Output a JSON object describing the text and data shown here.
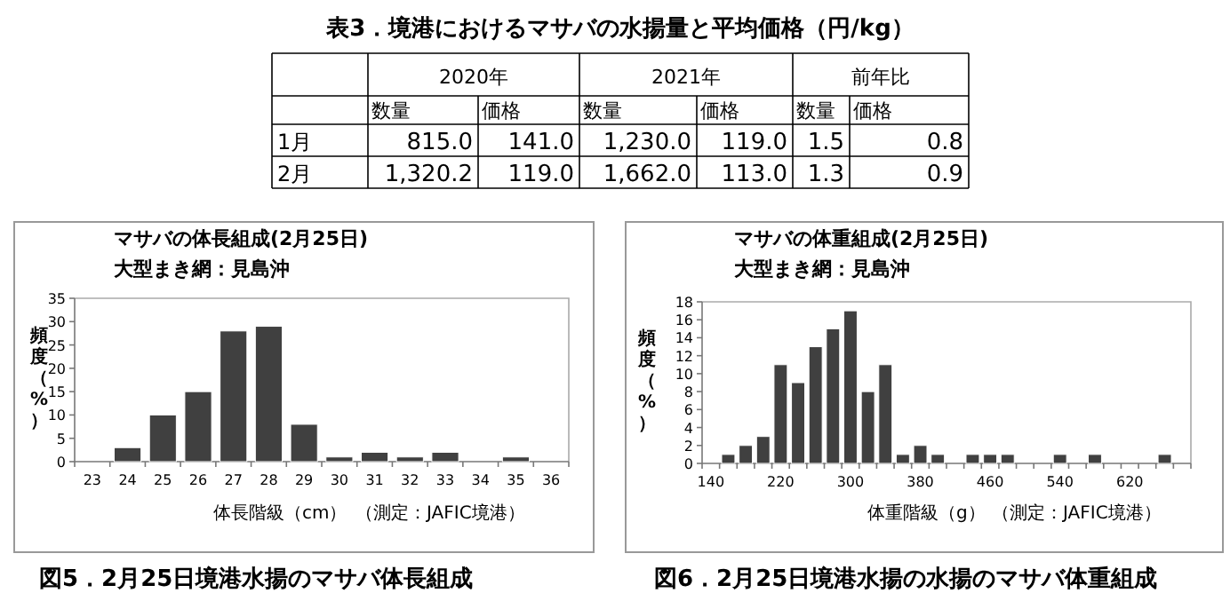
{
  "chart_data": [
    {
      "type": "other",
      "title": "表3．境港におけるマサバの水揚量と平均価格（円/kg）",
      "categories": [
        "2020年",
        "2021年",
        "前年比"
      ],
      "annotations": [
        "数量",
        "価格",
        "数量",
        "価格",
        "数量",
        "価格"
      ],
      "y_categories": [
        "1月",
        "2月"
      ],
      "cell_labels": [
        [
          "815.0",
          "141.0",
          "1,230.0",
          "119.0",
          "1.5",
          "0.8"
        ],
        [
          "1,320.2",
          "119.0",
          "1,662.0",
          "113.0",
          "1.3",
          "0.9"
        ]
      ]
    },
    {
      "type": "bar",
      "title": "マサバの体長組成(2月25日)",
      "subtitle": "大型まき網：見島沖",
      "xlabel": "体長階級（cm）",
      "ylabel": "頻度（%）",
      "annotations": [
        "（測定：JAFIC境港）",
        "図5．2月25日境港水揚のマサバ体長組成"
      ],
      "color": "#404040",
      "ylim": [
        0,
        35
      ],
      "yticks": [
        0,
        5,
        10,
        15,
        20,
        25,
        30,
        35
      ],
      "categories": [
        "23",
        "24",
        "25",
        "26",
        "27",
        "28",
        "29",
        "30",
        "31",
        "32",
        "33",
        "34",
        "35",
        "36"
      ],
      "values": [
        0,
        3,
        10,
        15,
        28,
        29,
        8,
        1,
        2,
        1,
        2,
        0,
        1,
        0
      ]
    },
    {
      "type": "bar",
      "title": "マサバの体重組成(2月25日)",
      "subtitle": "大型まき網：見島沖",
      "xlabel": "体重階級（g）",
      "ylabel": "頻度（%）",
      "annotations": [
        "（測定：JAFIC境港）",
        "図6．2月25日境港水揚の水揚のマサバ体重組成"
      ],
      "color": "#404040",
      "ylim": [
        0,
        18
      ],
      "yticks": [
        0,
        2,
        4,
        6,
        8,
        10,
        12,
        14,
        16,
        18
      ],
      "categories": [
        "140",
        null,
        null,
        null,
        "220",
        null,
        null,
        null,
        "300",
        null,
        null,
        null,
        "380",
        null,
        null,
        null,
        "460",
        null,
        null,
        null,
        "540",
        null,
        null,
        null,
        "620",
        null,
        null,
        null
      ],
      "values": [
        0,
        1,
        2,
        3,
        11,
        9,
        13,
        15,
        17,
        8,
        11,
        1,
        2,
        1,
        0,
        1,
        1,
        1,
        0,
        0,
        1,
        0,
        1,
        0,
        0,
        0,
        1,
        0
      ]
    }
  ]
}
